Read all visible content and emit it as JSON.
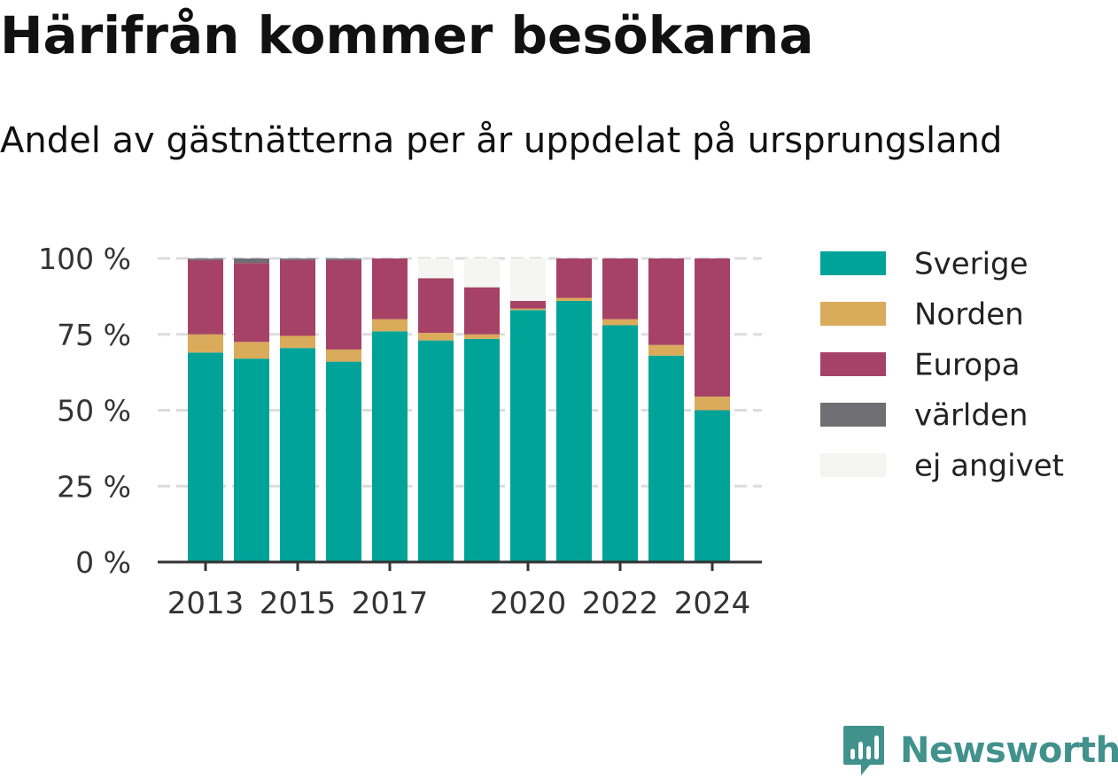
{
  "chart_data": {
    "type": "bar",
    "stacked": true,
    "title": "Härifrån kommer besökarna",
    "subtitle": "Andel av gästnätterna per år uppdelat på ursprungsland",
    "categories": [
      "2013",
      "2014",
      "2015",
      "2016",
      "2017",
      "2018",
      "2019",
      "2020",
      "2021",
      "2022",
      "2023",
      "2024"
    ],
    "x_tick_labels": [
      "2013",
      "2015",
      "2017",
      "2020",
      "2022",
      "2024"
    ],
    "ylim": [
      0,
      100
    ],
    "y_ticks": [
      0,
      25,
      50,
      75,
      100
    ],
    "y_tick_labels": [
      "0 %",
      "25 %",
      "50 %",
      "75 %",
      "100 %"
    ],
    "grid": true,
    "legend_position": "right",
    "series": [
      {
        "name": "Sverige",
        "color": "#00a398",
        "values": [
          69,
          67,
          70.5,
          66,
          76,
          73,
          73.5,
          83,
          86,
          78,
          68,
          50
        ]
      },
      {
        "name": "Norden",
        "color": "#d9ab5a",
        "values": [
          6,
          5.5,
          4,
          4,
          4,
          2.5,
          1.5,
          0.5,
          1,
          2,
          3.5,
          4.5
        ]
      },
      {
        "name": "Europa",
        "color": "#a64266",
        "values": [
          24.5,
          26,
          25,
          29.5,
          20,
          18,
          15.5,
          2.5,
          13,
          20,
          28.5,
          45.5
        ]
      },
      {
        "name": "världen",
        "color": "#6e6e73",
        "values": [
          0.5,
          1.5,
          0.5,
          0.5,
          0,
          0,
          0,
          0,
          0,
          0,
          0,
          0
        ]
      },
      {
        "name": "ej angivet",
        "color": "#f5f5f3",
        "values": [
          0,
          0,
          0,
          0,
          0,
          6.5,
          9.5,
          14,
          0,
          0,
          0,
          0
        ]
      }
    ]
  },
  "brand": {
    "name": "Newsworthy",
    "color": "#41918d"
  }
}
